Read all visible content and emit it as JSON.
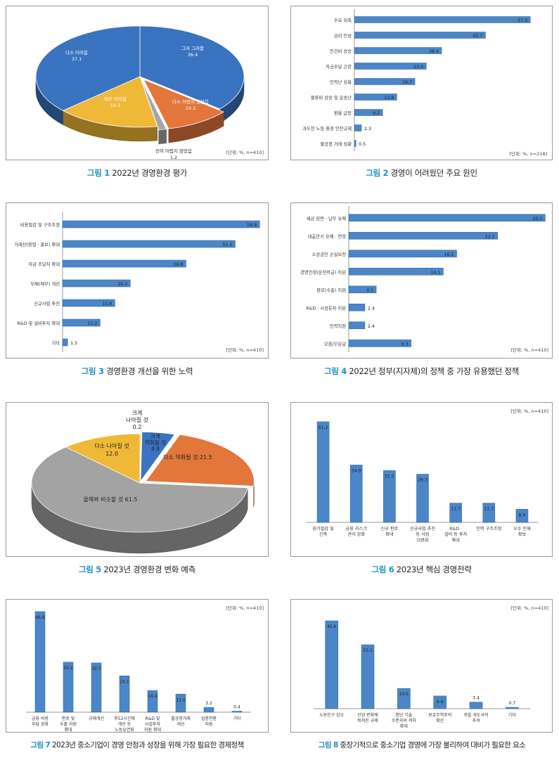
{
  "chart_data": [
    {
      "id": 1,
      "type": "pie",
      "figure_label": "그림 1",
      "caption": "2022년 경영환경 평가",
      "unit_note": "[단위: %, n=410]",
      "slices": [
        {
          "label": "그저 그러함",
          "value": 36.4,
          "value_text": "36.4",
          "color": "#3a73c0"
        },
        {
          "label": "다소 어렵지 않았음",
          "value": 10.2,
          "value_text": "10.2",
          "color": "#e2763b"
        },
        {
          "label": "전혀 어렵지 않았음",
          "value": 1.2,
          "value_text": "1.2",
          "color": "#a6a6a6"
        },
        {
          "label": "매우 어려움",
          "value": 16.1,
          "value_text": "16.1",
          "color": "#efb837"
        },
        {
          "label": "다소 어려움",
          "value": 37.1,
          "value_text": "37.1",
          "color": "#3a73c0"
        }
      ]
    },
    {
      "id": 2,
      "type": "bar",
      "orientation": "horizontal",
      "figure_label": "그림 2",
      "caption": "경영이 어려웠던 주요 원인",
      "unit_note": "[단위: %, n=218]",
      "xlim": [
        0,
        60
      ],
      "categories": [
        "수요 위축",
        "금리 인상",
        "인건비 상승",
        "자금조달 곤란",
        "인력난 심화",
        "물류비 상승 및 운송난",
        "환율 급등",
        "과도한 노동 환경 안전규제",
        "불공정 거래 심화"
      ],
      "values": [
        57.3,
        42.7,
        28.4,
        23.4,
        19.7,
        13.8,
        9.2,
        2.3,
        0.5
      ],
      "value_labels": [
        "57.3",
        "42.7",
        "28.4",
        "23.4",
        "19.7",
        "13.8",
        "9.2",
        "2.3",
        "0.5"
      ]
    },
    {
      "id": 3,
      "type": "bar",
      "orientation": "horizontal",
      "figure_label": "그림 3",
      "caption": "경영환경 개선을 위한 노력",
      "unit_note": "[단위: %, n=410]",
      "xlim": [
        0,
        60
      ],
      "categories": [
        "비용절감 및 구조조정",
        "거래선(영업 · 홍보) 확대",
        "자금 조달처 확대",
        "부채(채무) 개선",
        "신규사업 추진",
        "R&D 및 설비투자 확대",
        "기타"
      ],
      "values": [
        58.8,
        51.5,
        36.8,
        20.2,
        15.6,
        11.2,
        1.5
      ],
      "value_labels": [
        "58.8",
        "51.5",
        "36.8",
        "20.2",
        "15.6",
        "11.2",
        "1.5"
      ]
    },
    {
      "id": 4,
      "type": "bar",
      "orientation": "horizontal",
      "figure_label": "그림 4",
      "caption": "2022년 정부(지자체)의 정책 중 가장 유용했던 정책",
      "unit_note": "[단위: %, n=410]",
      "xlim": [
        0,
        30
      ],
      "categories": [
        "세금 감면 · 납부 유예",
        "대출만기 유예 · 연장",
        "소상공인 손실보전",
        "경영안정(운전자금) 지원",
        "판로(수출) 지원",
        "R&D · 시설투자 지원",
        "인력지원",
        "모름/무응답"
      ],
      "values": [
        29.3,
        22.2,
        16.1,
        14.1,
        4.1,
        2.4,
        2.4,
        9.3
      ],
      "value_labels": [
        "29.3",
        "22.2",
        "16.1",
        "14.1",
        "4.1",
        "2.4",
        "2.4",
        "9.3"
      ]
    },
    {
      "id": 5,
      "type": "pie",
      "figure_label": "그림 5",
      "caption": "2023년 경영환경 변화 예측",
      "slices": [
        {
          "label": "크게 나아질 것",
          "value": 0.2,
          "value_text": "0.2",
          "color": "#efb837"
        },
        {
          "label": "크게 악화될 것",
          "value": 4.9,
          "value_text": "4.9",
          "color": "#3a73c0"
        },
        {
          "label": "다소 악화될 것",
          "value": 21.5,
          "value_text": "21.5",
          "color": "#e2763b"
        },
        {
          "label": "올해와 비슷할 것",
          "value": 61.5,
          "value_text": "61.5",
          "color": "#a3a3a3"
        },
        {
          "label": "다소 나아질 것",
          "value": 12.0,
          "value_text": "12.0",
          "color": "#efb837"
        }
      ]
    },
    {
      "id": 6,
      "type": "bar",
      "orientation": "vertical",
      "figure_label": "그림 6",
      "caption": "2023년 핵심 경영전략",
      "unit_note": "[단위: %, n=410]",
      "ylim": [
        0,
        65
      ],
      "categories": [
        "원가절감 및 긴축",
        "금융 리스크 관리 강화",
        "신규 판로 확대",
        "신규사업 추진 등 사업 다변화",
        "R&D · 설비 등 투자 확대",
        "인력 구조조정",
        "우수 인재 확보"
      ],
      "values": [
        61.2,
        34.9,
        31.5,
        29.3,
        11.7,
        11.7,
        8.0
      ],
      "value_labels": [
        "61.2",
        "34.9",
        "31.5",
        "29.3",
        "11.7",
        "11.7",
        "8.0"
      ]
    },
    {
      "id": 7,
      "type": "bar",
      "orientation": "vertical",
      "figure_label": "그림 7",
      "caption": "2023년 중소기업이 경영 안정과 성장을 위해 가장 필요한 경제정책",
      "unit_note": "[단위: %, n=410]",
      "ylim": [
        0,
        70
      ],
      "categories": [
        "금융 비용 부담 완화",
        "판로 및 수출 지원 확대",
        "규제개선",
        "주52시간제 개선 등 노동유연화",
        "R&D 및 시설투자 지원 확대",
        "불공정거래 개선",
        "업종전환 지원",
        "기타"
      ],
      "values": [
        66.8,
        33.2,
        32.7,
        24.1,
        14.4,
        12.0,
        3.2,
        0.4
      ],
      "value_labels": [
        "66.8",
        "33.2",
        "32.7",
        "24.1",
        "14.4",
        "12.0",
        "3.2",
        "0.4"
      ]
    },
    {
      "id": 8,
      "type": "bar",
      "orientation": "vertical",
      "figure_label": "그림 8",
      "caption": "중장기적으로 중소기업 경영에 가장 불리하여 대비가 필요한 요소",
      "unit_note": "[단위: %, n=410]",
      "ylim": [
        0,
        50
      ],
      "categories": [
        "노동인구 감소",
        "산업 변화에 뒤쳐진 규제",
        "첨단 기술 수준과의 격차 확대",
        "보호무역주의 확산",
        "후발 개도국의 추격",
        "기타"
      ],
      "values": [
        45.6,
        33.2,
        10.5,
        6.6,
        3.4,
        0.7
      ],
      "value_labels": [
        "45.6",
        "33.2",
        "10.5",
        "6.6",
        "3.4",
        "0.7"
      ]
    }
  ]
}
